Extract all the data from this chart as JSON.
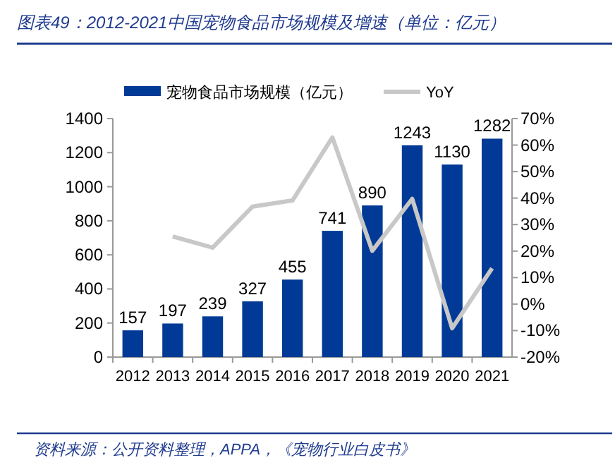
{
  "chart_data": {
    "type": "bar",
    "title": "图表49：2012-2021中国宠物食品市场规模及增速（单位：亿元）",
    "categories": [
      "2012",
      "2013",
      "2014",
      "2015",
      "2016",
      "2017",
      "2018",
      "2019",
      "2020",
      "2021"
    ],
    "series": [
      {
        "name": "宠物食品市场规模（亿元）",
        "color": "#003a96",
        "values": [
          157,
          197,
          239,
          327,
          455,
          741,
          890,
          1243,
          1130,
          1282
        ],
        "value_labels": [
          "157",
          "197",
          "239",
          "327",
          "455",
          "741",
          "890",
          "1243",
          "1130",
          "1282"
        ]
      },
      {
        "name": "YoY",
        "type": "line",
        "axis": "y2",
        "color": "#c8c8c8",
        "values": [
          null,
          25.5,
          21.3,
          36.8,
          39.1,
          62.9,
          20.1,
          39.7,
          -9.1,
          13.5
        ]
      }
    ],
    "ylim": [
      0,
      1400
    ],
    "yticks": [
      0,
      200,
      400,
      600,
      800,
      1000,
      1200,
      1400
    ],
    "y2lim": [
      -20,
      70
    ],
    "y2ticks": [
      {
        "value": -20,
        "label": "-20%"
      },
      {
        "value": -10,
        "label": "-10%"
      },
      {
        "value": 0,
        "label": "0%"
      },
      {
        "value": 10,
        "label": "10%"
      },
      {
        "value": 20,
        "label": "20%"
      },
      {
        "value": 30,
        "label": "30%"
      },
      {
        "value": 40,
        "label": "40%"
      },
      {
        "value": 50,
        "label": "50%"
      },
      {
        "value": 60,
        "label": "60%"
      },
      {
        "value": 70,
        "label": "70%"
      }
    ],
    "legend": "top",
    "grid": false,
    "marker": "none",
    "annotations": [
      "资料来源：公开资料整理，APPA，《宠物行业白皮书》"
    ]
  }
}
